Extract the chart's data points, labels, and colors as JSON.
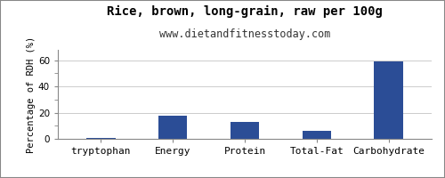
{
  "title": "Rice, brown, long-grain, raw per 100g",
  "subtitle": "www.dietandfitnesstoday.com",
  "categories": [
    "tryptophan",
    "Energy",
    "Protein",
    "Total-Fat",
    "Carbohydrate"
  ],
  "values": [
    0.4,
    18,
    13,
    6,
    59
  ],
  "bar_color": "#2b4d96",
  "ylabel": "Percentage of RDH (%)",
  "ylim": [
    0,
    68
  ],
  "yticks": [
    0,
    20,
    40,
    60
  ],
  "background_color": "#ffffff",
  "plot_bg_color": "#ffffff",
  "border_color": "#888888",
  "grid_color": "#cccccc",
  "title_fontsize": 10,
  "subtitle_fontsize": 8.5,
  "ylabel_fontsize": 7.5,
  "xlabel_fontsize": 8
}
